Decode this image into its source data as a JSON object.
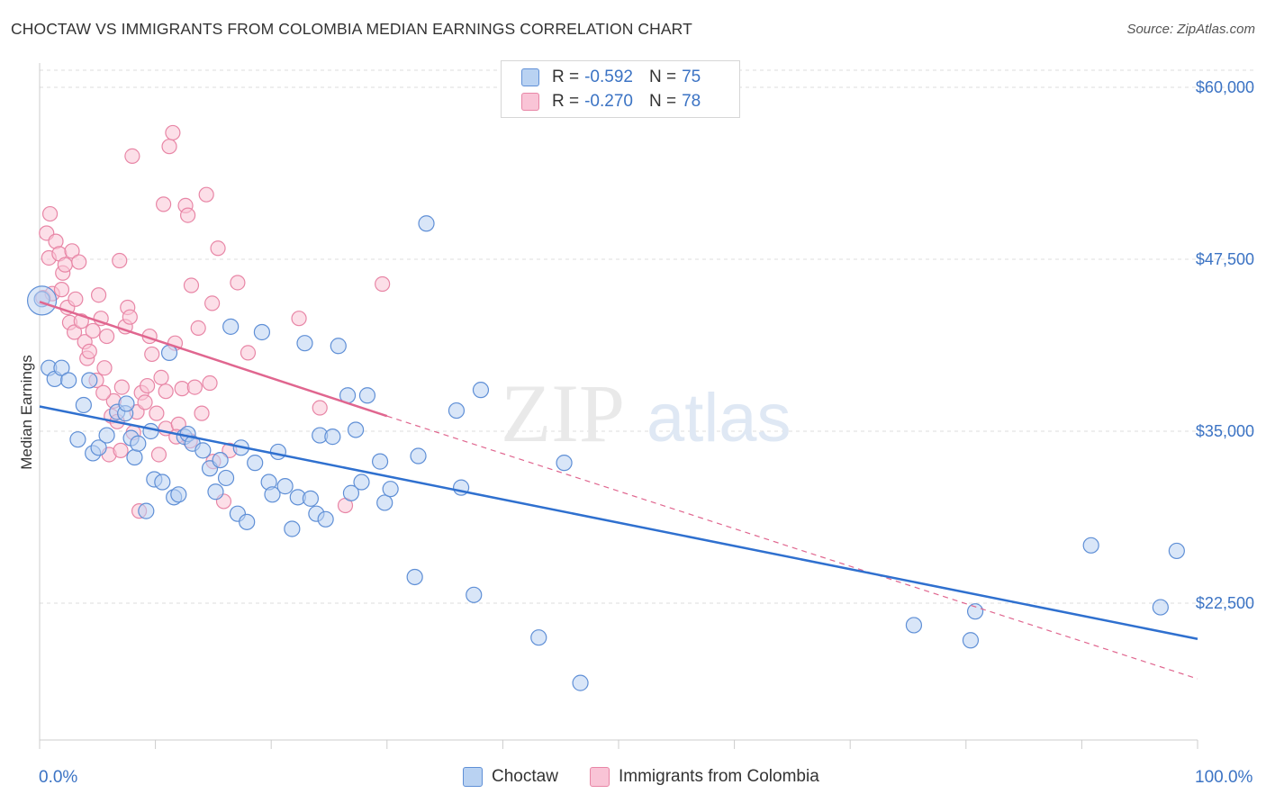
{
  "header": {
    "title": "CHOCTAW VS IMMIGRANTS FROM COLOMBIA MEDIAN EARNINGS CORRELATION CHART",
    "source": "Source: ZipAtlas.com"
  },
  "watermark": {
    "zip": "ZIP",
    "atlas": "atlas"
  },
  "legend": {
    "rows": [
      {
        "r_label": "R =",
        "r_value": "-0.592",
        "n_label": "N =",
        "n_value": "75"
      },
      {
        "r_label": "R =",
        "r_value": "-0.270",
        "n_label": "N =",
        "n_value": "78"
      }
    ]
  },
  "colors": {
    "blue_fill": "#b9d2f2",
    "blue_stroke": "#5f8fd6",
    "blue_line": "#2f70cf",
    "pink_fill": "#f9c4d6",
    "pink_stroke": "#e886a6",
    "pink_line": "#e0668f",
    "grid": "#dedede",
    "tick_label": "#3b73c4"
  },
  "chart_data": {
    "type": "scatter",
    "title": "CHOCTAW VS IMMIGRANTS FROM COLOMBIA MEDIAN EARNINGS CORRELATION CHART",
    "xlabel": "",
    "ylabel": "Median Earnings",
    "xlim": [
      0,
      100
    ],
    "ylim": [
      10000,
      62000
    ],
    "x_tick_labels": [
      "0.0%",
      "100.0%"
    ],
    "y_ticks": [
      22500,
      35000,
      47500,
      60000
    ],
    "y_tick_labels": [
      "$22,500",
      "$35,000",
      "$47,500",
      "$60,000"
    ],
    "grid": true,
    "legend_position": "top-center",
    "series": [
      {
        "name": "Choctaw",
        "r": -0.592,
        "n": 75,
        "trend": {
          "x": [
            0,
            100
          ],
          "y": [
            36800,
            19900
          ]
        },
        "points": [
          [
            0.2,
            44600
          ],
          [
            0.8,
            39600
          ],
          [
            1.3,
            38800
          ],
          [
            1.9,
            39600
          ],
          [
            2.5,
            38700
          ],
          [
            3.3,
            34400
          ],
          [
            3.8,
            36900
          ],
          [
            4.3,
            38700
          ],
          [
            4.6,
            33400
          ],
          [
            5.1,
            33800
          ],
          [
            5.8,
            34700
          ],
          [
            6.7,
            36400
          ],
          [
            7.4,
            36300
          ],
          [
            7.5,
            37000
          ],
          [
            7.9,
            34500
          ],
          [
            8.2,
            33100
          ],
          [
            8.5,
            34100
          ],
          [
            9.2,
            29200
          ],
          [
            9.6,
            35000
          ],
          [
            9.9,
            31500
          ],
          [
            10.6,
            31300
          ],
          [
            11.2,
            40700
          ],
          [
            11.6,
            30200
          ],
          [
            12.0,
            30400
          ],
          [
            12.5,
            34600
          ],
          [
            12.8,
            34800
          ],
          [
            13.2,
            34100
          ],
          [
            14.1,
            33600
          ],
          [
            14.7,
            32300
          ],
          [
            15.2,
            30600
          ],
          [
            15.6,
            32900
          ],
          [
            16.1,
            31600
          ],
          [
            16.5,
            42600
          ],
          [
            17.1,
            29000
          ],
          [
            17.4,
            33800
          ],
          [
            17.9,
            28400
          ],
          [
            18.6,
            32700
          ],
          [
            19.2,
            42200
          ],
          [
            19.8,
            31300
          ],
          [
            20.1,
            30400
          ],
          [
            20.6,
            33500
          ],
          [
            21.2,
            31000
          ],
          [
            21.8,
            27900
          ],
          [
            22.3,
            30200
          ],
          [
            22.9,
            41400
          ],
          [
            23.4,
            30100
          ],
          [
            23.9,
            29000
          ],
          [
            24.2,
            34700
          ],
          [
            24.7,
            28600
          ],
          [
            25.3,
            34600
          ],
          [
            25.8,
            41200
          ],
          [
            26.6,
            37600
          ],
          [
            26.9,
            30500
          ],
          [
            27.3,
            35100
          ],
          [
            27.8,
            31300
          ],
          [
            28.3,
            37600
          ],
          [
            29.4,
            32800
          ],
          [
            29.8,
            29800
          ],
          [
            30.3,
            30800
          ],
          [
            32.4,
            24400
          ],
          [
            32.7,
            33200
          ],
          [
            33.4,
            50100
          ],
          [
            36.0,
            36500
          ],
          [
            36.4,
            30900
          ],
          [
            37.5,
            23100
          ],
          [
            38.1,
            38000
          ],
          [
            43.1,
            20000
          ],
          [
            45.3,
            32700
          ],
          [
            46.7,
            16700
          ],
          [
            75.5,
            20900
          ],
          [
            80.4,
            19800
          ],
          [
            80.8,
            21900
          ],
          [
            90.8,
            26700
          ],
          [
            96.8,
            22200
          ],
          [
            98.2,
            26300
          ]
        ]
      },
      {
        "name": "Immigrants from Colombia",
        "r": -0.27,
        "n": 78,
        "trend": {
          "x": [
            0,
            30
          ],
          "y": [
            44400,
            36100
          ]
        },
        "trend_dashed": {
          "x": [
            30,
            100
          ],
          "y": [
            36100,
            17000
          ]
        },
        "points": [
          [
            0.3,
            44700
          ],
          [
            0.6,
            49400
          ],
          [
            0.8,
            47600
          ],
          [
            0.9,
            50800
          ],
          [
            1.1,
            45000
          ],
          [
            1.4,
            48800
          ],
          [
            1.7,
            47900
          ],
          [
            1.9,
            45300
          ],
          [
            2.0,
            46500
          ],
          [
            2.2,
            47100
          ],
          [
            2.4,
            44000
          ],
          [
            2.6,
            42900
          ],
          [
            2.8,
            48100
          ],
          [
            3.0,
            42200
          ],
          [
            3.1,
            44600
          ],
          [
            3.4,
            47300
          ],
          [
            3.6,
            43000
          ],
          [
            3.9,
            41500
          ],
          [
            4.1,
            40300
          ],
          [
            4.3,
            40800
          ],
          [
            4.6,
            42300
          ],
          [
            4.9,
            38700
          ],
          [
            5.1,
            44900
          ],
          [
            5.3,
            43200
          ],
          [
            5.6,
            39600
          ],
          [
            5.8,
            41900
          ],
          [
            6.0,
            33300
          ],
          [
            6.2,
            36100
          ],
          [
            6.4,
            37200
          ],
          [
            6.7,
            35700
          ],
          [
            6.9,
            47400
          ],
          [
            7.1,
            38200
          ],
          [
            7.4,
            42600
          ],
          [
            7.6,
            44000
          ],
          [
            7.8,
            43300
          ],
          [
            8.1,
            34900
          ],
          [
            8.4,
            36400
          ],
          [
            8.6,
            29200
          ],
          [
            8.8,
            37800
          ],
          [
            9.1,
            37100
          ],
          [
            9.5,
            41900
          ],
          [
            9.7,
            40600
          ],
          [
            10.1,
            36300
          ],
          [
            10.3,
            33300
          ],
          [
            10.5,
            38900
          ],
          [
            10.7,
            51500
          ],
          [
            10.9,
            35200
          ],
          [
            11.2,
            55700
          ],
          [
            11.5,
            56700
          ],
          [
            11.7,
            41400
          ],
          [
            12.0,
            35500
          ],
          [
            12.3,
            38100
          ],
          [
            12.6,
            51400
          ],
          [
            12.8,
            50700
          ],
          [
            13.1,
            45600
          ],
          [
            13.4,
            38200
          ],
          [
            13.7,
            42500
          ],
          [
            14.0,
            36300
          ],
          [
            14.4,
            52200
          ],
          [
            14.7,
            38500
          ],
          [
            15.0,
            32800
          ],
          [
            15.4,
            48300
          ],
          [
            15.9,
            29900
          ],
          [
            16.4,
            33600
          ],
          [
            17.1,
            45800
          ],
          [
            18.0,
            40700
          ],
          [
            22.4,
            43200
          ],
          [
            24.2,
            36700
          ],
          [
            26.4,
            29600
          ],
          [
            29.6,
            45700
          ],
          [
            8.0,
            55000
          ],
          [
            9.3,
            38300
          ],
          [
            10.9,
            37900
          ],
          [
            13.0,
            34300
          ],
          [
            14.9,
            44300
          ],
          [
            5.5,
            37800
          ],
          [
            7.0,
            33600
          ],
          [
            11.8,
            34600
          ]
        ]
      }
    ]
  },
  "bottom_legend": {
    "items": [
      "Choctaw",
      "Immigrants from Colombia"
    ]
  }
}
